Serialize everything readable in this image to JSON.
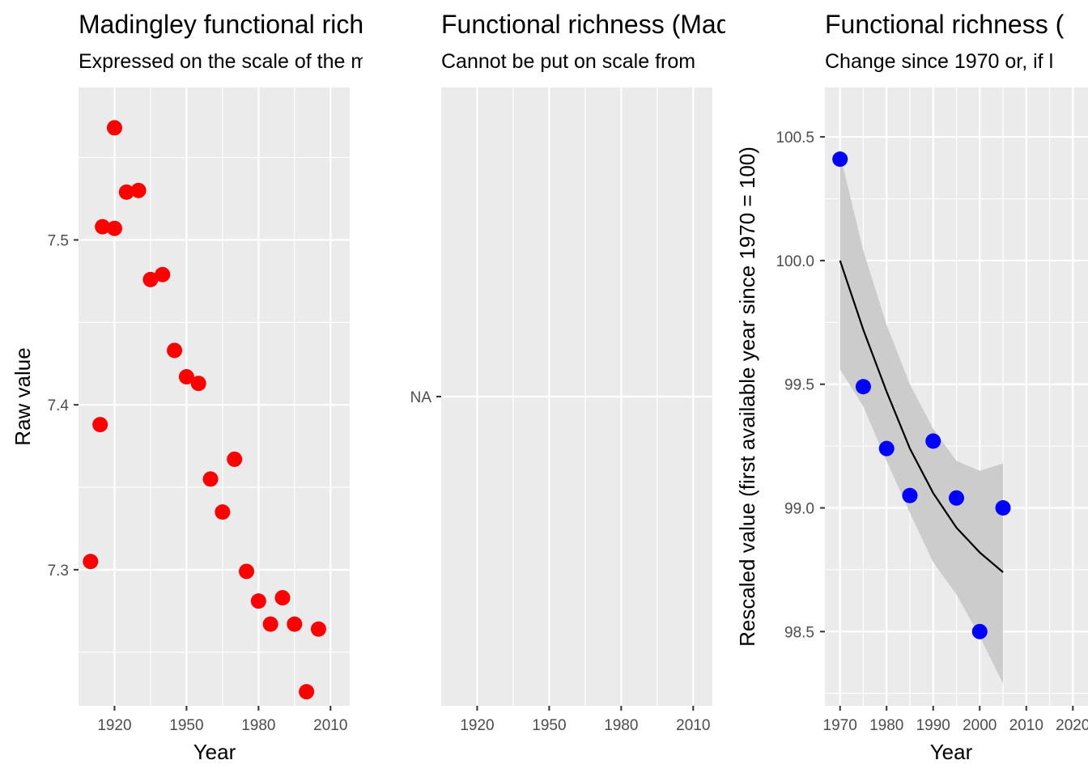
{
  "chart_data": [
    {
      "type": "scatter",
      "title": "Madingley functional richness",
      "subtitle": "Expressed on the scale of the model",
      "xlabel": "Year",
      "ylabel": "Raw value",
      "xlim": [
        1905,
        2018
      ],
      "ylim": [
        7.2175,
        7.5925
      ],
      "xticks": [
        1920,
        1950,
        1980,
        2010
      ],
      "yticks": [
        7.3,
        7.4,
        7.5
      ],
      "yticks_minor": [
        7.25,
        7.35,
        7.45,
        7.55
      ],
      "xticks_minor": [
        1935,
        1965,
        1995
      ],
      "grid": true,
      "point_color": "#ff0000",
      "points": [
        {
          "x": 1910,
          "y": 7.305
        },
        {
          "x": 1914,
          "y": 7.388
        },
        {
          "x": 1915,
          "y": 7.508
        },
        {
          "x": 1920,
          "y": 7.568
        },
        {
          "x": 1920,
          "y": 7.507
        },
        {
          "x": 1925,
          "y": 7.529
        },
        {
          "x": 1930,
          "y": 7.53
        },
        {
          "x": 1935,
          "y": 7.476
        },
        {
          "x": 1940,
          "y": 7.479
        },
        {
          "x": 1945,
          "y": 7.433
        },
        {
          "x": 1950,
          "y": 7.417
        },
        {
          "x": 1955,
          "y": 7.413
        },
        {
          "x": 1960,
          "y": 7.355
        },
        {
          "x": 1965,
          "y": 7.335
        },
        {
          "x": 1970,
          "y": 7.367
        },
        {
          "x": 1975,
          "y": 7.299
        },
        {
          "x": 1980,
          "y": 7.281
        },
        {
          "x": 1985,
          "y": 7.267
        },
        {
          "x": 1990,
          "y": 7.283
        },
        {
          "x": 1995,
          "y": 7.267
        },
        {
          "x": 2000,
          "y": 7.226
        },
        {
          "x": 2005,
          "y": 7.264
        }
      ]
    },
    {
      "type": "scatter",
      "title": "Functional richness (Madingley)",
      "subtitle": "Cannot be put on scale from",
      "xlabel": "",
      "ylabel": "",
      "xlim": [
        1905,
        2018
      ],
      "xticks": [
        1920,
        1950,
        1980,
        2010
      ],
      "xticks_minor": [
        1935,
        1965,
        1995
      ],
      "yticks_labels": [
        "NA"
      ],
      "grid": true,
      "points": []
    },
    {
      "type": "scatter",
      "title": "Functional richness (",
      "subtitle": "Change since 1970 or, if l",
      "xlabel": "Year",
      "ylabel": "Rescaled value (first available year since 1970 = 100)",
      "xlim": [
        1966.75,
        2023.25
      ],
      "ylim": [
        98.2,
        100.7
      ],
      "xticks": [
        1970,
        1980,
        1990,
        2000,
        2010,
        2020
      ],
      "xticks_minor": [
        1975,
        1985,
        1995,
        2005,
        2015
      ],
      "yticks": [
        98.5,
        99.0,
        99.5,
        100.0,
        100.5
      ],
      "yticks_minor": [
        98.25,
        98.75,
        99.25,
        99.75,
        100.25
      ],
      "grid": true,
      "point_color": "#0000ff",
      "points": [
        {
          "x": 1970,
          "y": 100.41
        },
        {
          "x": 1975,
          "y": 99.49
        },
        {
          "x": 1980,
          "y": 99.24
        },
        {
          "x": 1985,
          "y": 99.05
        },
        {
          "x": 1990,
          "y": 99.27
        },
        {
          "x": 1995,
          "y": 99.04
        },
        {
          "x": 2000,
          "y": 98.5
        },
        {
          "x": 2005,
          "y": 99.0
        }
      ],
      "trend": {
        "x": [
          1970,
          1975,
          1980,
          1985,
          1990,
          1995,
          2000,
          2005
        ],
        "y": [
          100.0,
          99.72,
          99.47,
          99.24,
          99.06,
          98.92,
          98.82,
          98.74
        ],
        "lower": [
          99.56,
          99.41,
          99.19,
          98.98,
          98.78,
          98.65,
          98.48,
          98.29
        ],
        "upper": [
          100.43,
          100.04,
          99.74,
          99.5,
          99.32,
          99.19,
          99.15,
          99.18
        ],
        "line_color": "#000000",
        "band_color": "#cccccc"
      }
    }
  ]
}
